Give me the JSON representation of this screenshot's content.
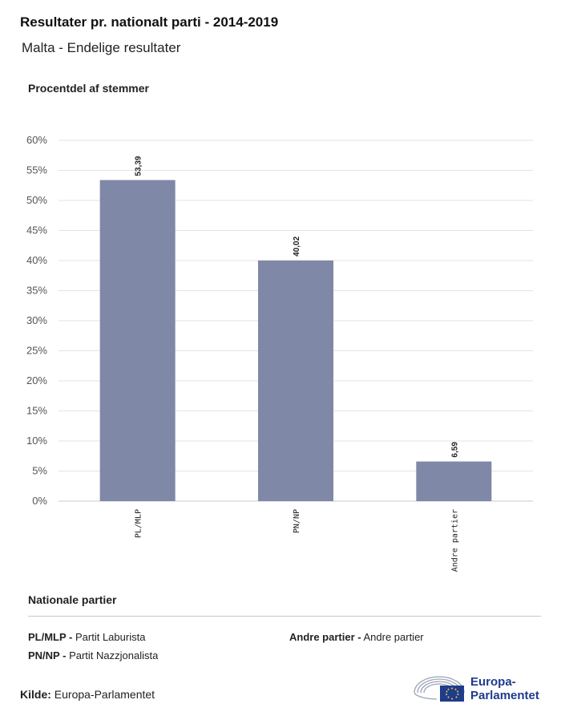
{
  "header": {
    "title": "Resultater pr. nationalt parti - 2014-2019",
    "subtitle": "Malta - Endelige resultater"
  },
  "chart_data": {
    "type": "bar",
    "ylabel": "Procentdel af stemmer",
    "categories": [
      "PL/MLP",
      "PN/NP",
      "Andre partier"
    ],
    "values": [
      53.39,
      40.02,
      6.59
    ],
    "value_labels": [
      "53,39",
      "40,02",
      "6,59"
    ],
    "ylim": [
      0,
      60
    ],
    "yticks": [
      "0%",
      "5%",
      "10%",
      "15%",
      "20%",
      "25%",
      "30%",
      "35%",
      "40%",
      "45%",
      "50%",
      "55%",
      "60%"
    ],
    "grid": true,
    "bar_color": "#7f88a6"
  },
  "legend": {
    "title": "Nationale partier",
    "items": [
      {
        "abbr": "PL/MLP -",
        "name": "Partit Laburista"
      },
      {
        "abbr": "PN/NP -",
        "name": "Partit Nazzjonalista"
      },
      {
        "abbr": "Andre partier -",
        "name": "Andre partier"
      }
    ]
  },
  "footer": {
    "source_label": "Kilde:",
    "source_value": "Europa-Parlamentet",
    "logo_line1": "Europa-",
    "logo_line2": "Parlamentet"
  }
}
